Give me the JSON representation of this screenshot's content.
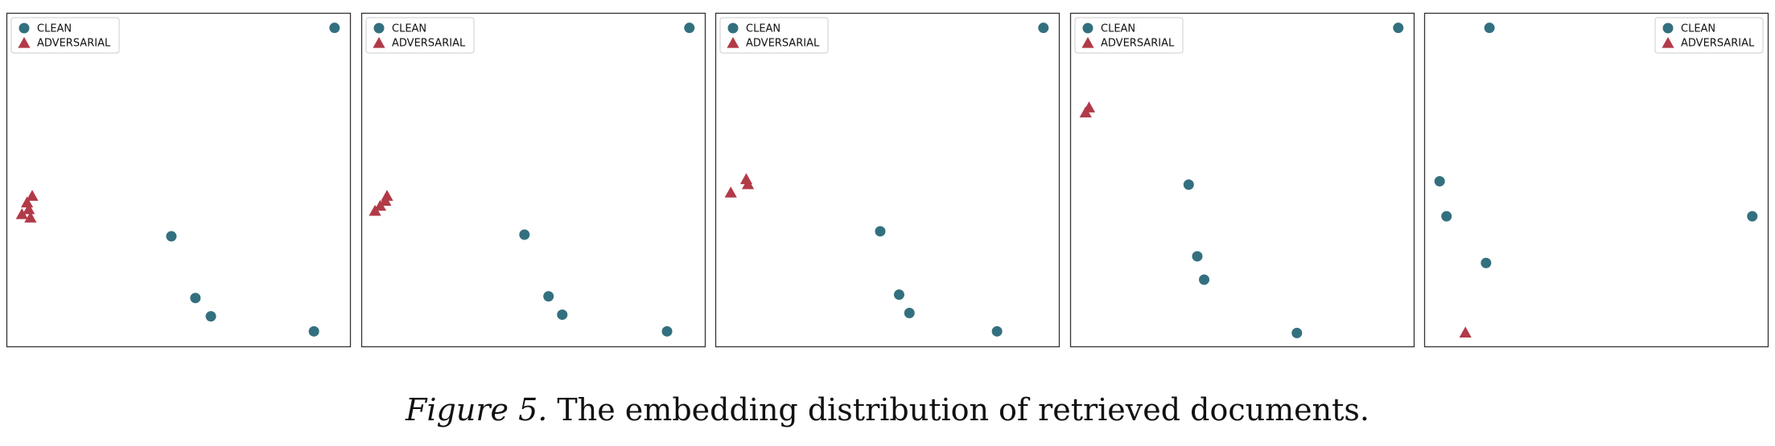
{
  "caption": {
    "label": "Figure 5.",
    "text": "The embedding distribution of retrieved documents."
  },
  "colors": {
    "clean": "#33707f",
    "adversarial": "#b23a48",
    "frame": "#333333",
    "legend_border": "#cccccc"
  },
  "chart_data": [
    {
      "type": "scatter",
      "xlim": [
        0,
        1
      ],
      "ylim": [
        0,
        1
      ],
      "grid": false,
      "legend": {
        "placement": "top-left",
        "entries": [
          "CLEAN",
          "ADVERSARIAL"
        ]
      },
      "series": [
        {
          "name": "CLEAN",
          "marker": "circle",
          "x": [
            0.955,
            0.48,
            0.55,
            0.595,
            0.895
          ],
          "y": [
            0.955,
            0.33,
            0.145,
            0.09,
            0.045
          ]
        },
        {
          "name": "ADVERSARIAL",
          "marker": "triangle",
          "x": [
            0.045,
            0.07,
            0.065,
            0.06,
            0.075
          ],
          "y": [
            0.395,
            0.385,
            0.41,
            0.43,
            0.45
          ]
        }
      ]
    },
    {
      "type": "scatter",
      "xlim": [
        0,
        1
      ],
      "ylim": [
        0,
        1
      ],
      "grid": false,
      "legend": {
        "placement": "top-left",
        "entries": [
          "CLEAN",
          "ADVERSARIAL"
        ]
      },
      "series": [
        {
          "name": "CLEAN",
          "marker": "circle",
          "x": [
            0.955,
            0.475,
            0.545,
            0.585,
            0.89
          ],
          "y": [
            0.955,
            0.335,
            0.15,
            0.095,
            0.045
          ]
        },
        {
          "name": "ADVERSARIAL",
          "marker": "triangle",
          "x": [
            0.04,
            0.055,
            0.07,
            0.075
          ],
          "y": [
            0.405,
            0.42,
            0.435,
            0.45
          ]
        }
      ]
    },
    {
      "type": "scatter",
      "xlim": [
        0,
        1
      ],
      "ylim": [
        0,
        1
      ],
      "grid": false,
      "legend": {
        "placement": "top-left",
        "entries": [
          "CLEAN",
          "ADVERSARIAL"
        ]
      },
      "series": [
        {
          "name": "CLEAN",
          "marker": "circle",
          "x": [
            0.955,
            0.48,
            0.535,
            0.565,
            0.82
          ],
          "y": [
            0.955,
            0.345,
            0.155,
            0.1,
            0.045
          ]
        },
        {
          "name": "ADVERSARIAL",
          "marker": "triangle",
          "x": [
            0.045,
            0.09,
            0.095
          ],
          "y": [
            0.46,
            0.5,
            0.485
          ]
        }
      ]
    },
    {
      "type": "scatter",
      "xlim": [
        0,
        1
      ],
      "ylim": [
        0,
        1
      ],
      "grid": false,
      "legend": {
        "placement": "top-left",
        "entries": [
          "CLEAN",
          "ADVERSARIAL"
        ]
      },
      "series": [
        {
          "name": "CLEAN",
          "marker": "circle",
          "x": [
            0.955,
            0.345,
            0.37,
            0.39,
            0.66
          ],
          "y": [
            0.955,
            0.485,
            0.27,
            0.2,
            0.04
          ]
        },
        {
          "name": "ADVERSARIAL",
          "marker": "triangle",
          "x": [
            0.045,
            0.055
          ],
          "y": [
            0.7,
            0.715
          ]
        }
      ]
    },
    {
      "type": "scatter",
      "xlim": [
        0,
        1
      ],
      "ylim": [
        0,
        1
      ],
      "grid": false,
      "legend": {
        "placement": "top-right",
        "entries": [
          "CLEAN",
          "ADVERSARIAL"
        ]
      },
      "series": [
        {
          "name": "CLEAN",
          "marker": "circle",
          "x": [
            0.19,
            0.045,
            0.065,
            0.955,
            0.18
          ],
          "y": [
            0.955,
            0.495,
            0.39,
            0.39,
            0.25
          ]
        },
        {
          "name": "ADVERSARIAL",
          "marker": "triangle",
          "x": [
            0.12
          ],
          "y": [
            0.04
          ]
        }
      ]
    }
  ]
}
